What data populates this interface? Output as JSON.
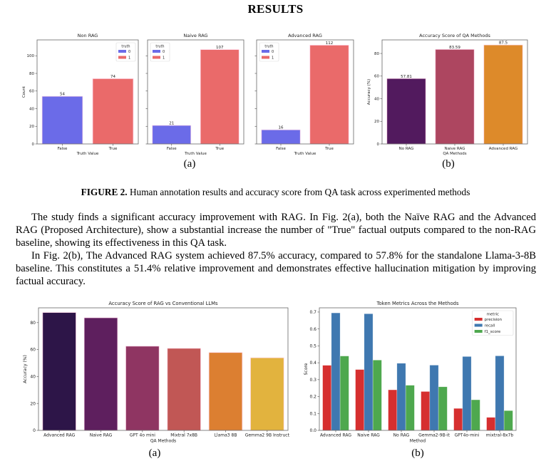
{
  "page": {
    "title": "RESULTS",
    "figure_caption": {
      "label": "FIGURE 2.",
      "text": " Human annotation results and accuracy score from QA task across experimented methods"
    },
    "subcaptions": {
      "top_a": "(a)",
      "top_b": "(b)",
      "bottom_a": "(a)",
      "bottom_b": "(b)"
    },
    "paragraphs": [
      "The study finds a significant accuracy improvement with RAG. In Fig. 2(a), both the Naïve RAG and the Advanced RAG (Proposed Architecture), show a substantial increase the number of \"True\" factual outputs compared to the non-RAG baseline, showing its effectiveness in this QA task.",
      "In Fig. 2(b), The Advanced RAG system achieved 87.5% accuracy, compared to 57.8% for the standalone Llama-3-8B baseline. This constitutes a 51.4% relative improvement and demonstrates effective hallucination mitigation by improving factual accuracy."
    ]
  },
  "colors": {
    "false": "#6b6be8",
    "true": "#ea6a6a",
    "precision": "#d62f2f",
    "recall": "#3f78b0",
    "f1_score": "#4ea84e"
  },
  "chart_data": [
    {
      "id": "non_rag",
      "type": "bar",
      "title": "Non RAG",
      "xlabel": "Truth Value",
      "ylabel": "Count",
      "categories": [
        "False",
        "True"
      ],
      "values": [
        54,
        74
      ],
      "labels": [
        "54",
        "74"
      ],
      "ylim": [
        0,
        118
      ],
      "yticks": [
        0,
        20,
        40,
        60,
        80,
        100
      ],
      "show_ytick_labels": true,
      "legend": {
        "title": "truth",
        "entries": [
          "0",
          "1"
        ],
        "placement": "top-right"
      },
      "colors": [
        "#6b6be8",
        "#ea6a6a"
      ]
    },
    {
      "id": "naive_rag",
      "type": "bar",
      "title": "Naive RAG",
      "xlabel": "Truth Value",
      "ylabel": "",
      "categories": [
        "False",
        "True"
      ],
      "values": [
        21,
        107
      ],
      "labels": [
        "21",
        "107"
      ],
      "ylim": [
        0,
        118
      ],
      "yticks": [
        0,
        20,
        40,
        60,
        80,
        100
      ],
      "show_ytick_labels": false,
      "legend": {
        "title": "truth",
        "entries": [
          "0",
          "1"
        ],
        "placement": "top-left"
      },
      "colors": [
        "#6b6be8",
        "#ea6a6a"
      ]
    },
    {
      "id": "advanced_rag",
      "type": "bar",
      "title": "Advanced RAG",
      "xlabel": "Truth Value",
      "ylabel": "",
      "categories": [
        "False",
        "True"
      ],
      "values": [
        16,
        112
      ],
      "labels": [
        "16",
        "112"
      ],
      "ylim": [
        0,
        118
      ],
      "yticks": [
        0,
        20,
        40,
        60,
        80,
        100
      ],
      "show_ytick_labels": false,
      "legend": {
        "title": "truth",
        "entries": [
          "0",
          "1"
        ],
        "placement": "top-left"
      },
      "colors": [
        "#6b6be8",
        "#ea6a6a"
      ]
    },
    {
      "id": "accuracy_qa",
      "type": "bar",
      "title": "Accuracy Score of QA Methods",
      "xlabel": "QA Methods",
      "ylabel": "Accuracy (%)",
      "categories": [
        "No RAG",
        "Naive RAG",
        "Advanced RAG"
      ],
      "values": [
        57.81,
        83.59,
        87.5
      ],
      "labels": [
        "57.81",
        "83.59",
        "87.5"
      ],
      "ylim": [
        0,
        92
      ],
      "yticks": [
        0,
        20,
        40,
        60,
        80
      ],
      "show_ytick_labels": true,
      "colors": [
        "#521a5e",
        "#ad4660",
        "#dd8a2a"
      ]
    },
    {
      "id": "rag_vs_llms",
      "type": "bar",
      "title": "Accuracy Score of RAG vs Conventional LLMs",
      "xlabel": "QA Methods",
      "ylabel": "Accuracy (%)",
      "categories": [
        "Advanced RAG",
        "Naive RAG",
        "GPT 4o mini",
        "Mixtral 7x8B",
        "Llama3 8B",
        "Gemma2 9B Instruct"
      ],
      "values": [
        87.5,
        83.6,
        62.5,
        60.9,
        57.8,
        53.9
      ],
      "ylim": [
        0,
        91
      ],
      "yticks": [
        0,
        20,
        40,
        60,
        80
      ],
      "show_ytick_labels": true,
      "colors": [
        "#2d1548",
        "#5e1f5e",
        "#8f3562",
        "#c15755",
        "#dc7f31",
        "#e2b33e"
      ]
    },
    {
      "id": "token_metrics",
      "type": "bar",
      "title": "Token Metrics Across the Methods",
      "xlabel": "Method",
      "ylabel": "Score",
      "categories": [
        "Advanced RAG",
        "Naive RAG",
        "No RAG",
        "Gemma2-9B-it",
        "GPT4o-mini",
        "mixtral-8x7b"
      ],
      "series": [
        {
          "name": "precision",
          "values": [
            0.385,
            0.36,
            0.24,
            0.23,
            0.13,
            0.077
          ]
        },
        {
          "name": "recall",
          "values": [
            0.695,
            0.69,
            0.397,
            0.386,
            0.437,
            0.441
          ]
        },
        {
          "name": "f1_score",
          "values": [
            0.44,
            0.416,
            0.267,
            0.258,
            0.181,
            0.117
          ]
        }
      ],
      "ylim": [
        0,
        0.725
      ],
      "yticks": [
        0.0,
        0.1,
        0.2,
        0.3,
        0.4,
        0.5,
        0.6,
        0.7
      ],
      "ytick_labels": [
        "0.0",
        "0.1",
        "0.2",
        "0.3",
        "0.4",
        "0.5",
        "0.6",
        "0.7"
      ],
      "show_ytick_labels": true,
      "legend": {
        "title": "metric",
        "entries": [
          "precision",
          "recall",
          "f1_score"
        ],
        "placement": "top-right"
      },
      "colors": [
        "#d62f2f",
        "#3f78b0",
        "#4ea84e"
      ]
    }
  ]
}
